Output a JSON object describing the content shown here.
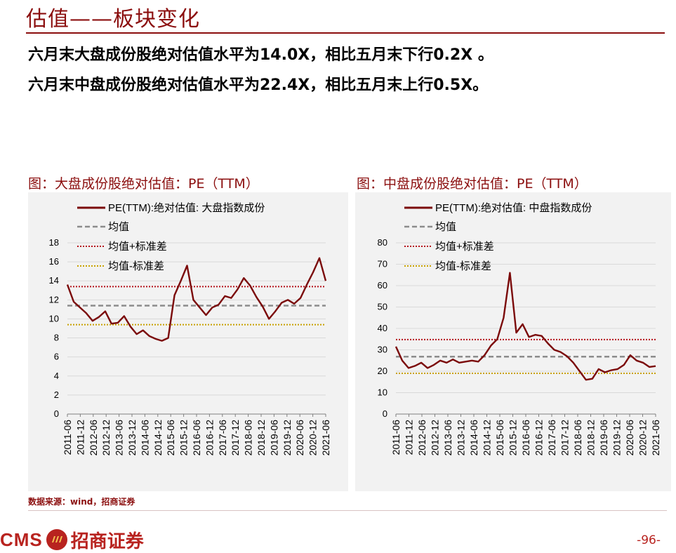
{
  "page": {
    "title": "估值——板块变化",
    "summary_1": "六月末大盘成份股绝对估值水平为14.0X，相比五月末下行0.2X 。",
    "summary_2": "六月末中盘成份股绝对估值水平为22.4X，相比五月末上行0.5X。",
    "source": "数据来源：wind，招商证券",
    "logo_text": "CMS",
    "logo_cn": "招商证券",
    "page_number": "-96-",
    "accent_color": "#8b0e0e"
  },
  "chart_data": [
    {
      "panel_title": "图：大盘成份股绝对估值：PE（TTM）",
      "type": "line",
      "ylim": [
        0,
        18
      ],
      "yticks": [
        0,
        2,
        4,
        6,
        8,
        10,
        12,
        14,
        16,
        18
      ],
      "x_labels": [
        "2011-06",
        "2011-12",
        "2012-06",
        "2012-12",
        "2013-06",
        "2013-12",
        "2014-06",
        "2014-12",
        "2015-06",
        "2015-12",
        "2016-06",
        "2016-12",
        "2017-06",
        "2017-12",
        "2018-06",
        "2018-12",
        "2019-06",
        "2019-12",
        "2020-06",
        "2020-12",
        "2021-06"
      ],
      "grid": true,
      "legend": [
        "PE(TTM):绝对估值: 大盘指数成份",
        "均值",
        "均值+标准差",
        "均值-标准差"
      ],
      "series": {
        "values": [
          13.6,
          11.8,
          11.2,
          10.6,
          9.8,
          10.2,
          10.8,
          9.5,
          9.6,
          10.3,
          9.2,
          8.4,
          8.8,
          8.2,
          7.9,
          7.7,
          8.0,
          12.5,
          14.0,
          15.6,
          12.0,
          11.2,
          10.4,
          11.2,
          11.5,
          12.4,
          12.2,
          13.1,
          14.3,
          13.5,
          12.3,
          11.3,
          10.0,
          10.8,
          11.7,
          12.0,
          11.6,
          12.2,
          13.6,
          14.9,
          16.4,
          14.0
        ],
        "mean": 11.4,
        "mean_plus_std": 13.4,
        "mean_minus_std": 9.4
      }
    },
    {
      "panel_title": "图：中盘成份股绝对估值：PE（TTM）",
      "type": "line",
      "ylim": [
        0,
        80
      ],
      "yticks": [
        0,
        10,
        20,
        30,
        40,
        50,
        60,
        70,
        80
      ],
      "x_labels": [
        "2011-06",
        "2011-12",
        "2012-06",
        "2012-12",
        "2013-06",
        "2013-12",
        "2014-06",
        "2014-12",
        "2015-06",
        "2015-12",
        "2016-06",
        "2016-12",
        "2017-06",
        "2017-12",
        "2018-06",
        "2018-12",
        "2019-06",
        "2019-12",
        "2020-06",
        "2020-12",
        "2021-06"
      ],
      "grid": true,
      "legend": [
        "PE(TTM):绝对估值: 中盘指数成份",
        "均值",
        "均值+标准差",
        "均值-标准差"
      ],
      "series": {
        "values": [
          31.5,
          25.0,
          21.5,
          22.5,
          24.0,
          21.5,
          23.0,
          25.0,
          24.0,
          25.5,
          24.0,
          24.5,
          25.0,
          24.5,
          27.5,
          32.0,
          35.0,
          45.0,
          66.0,
          38.0,
          42.0,
          36.0,
          37.0,
          36.5,
          33.0,
          30.0,
          29.0,
          27.0,
          24.0,
          20.0,
          16.0,
          16.5,
          21.0,
          19.5,
          20.5,
          21.0,
          23.0,
          27.5,
          25.0,
          24.0,
          22.0,
          22.4
        ],
        "mean": 26.8,
        "mean_plus_std": 34.8,
        "mean_minus_std": 19.0
      }
    }
  ]
}
